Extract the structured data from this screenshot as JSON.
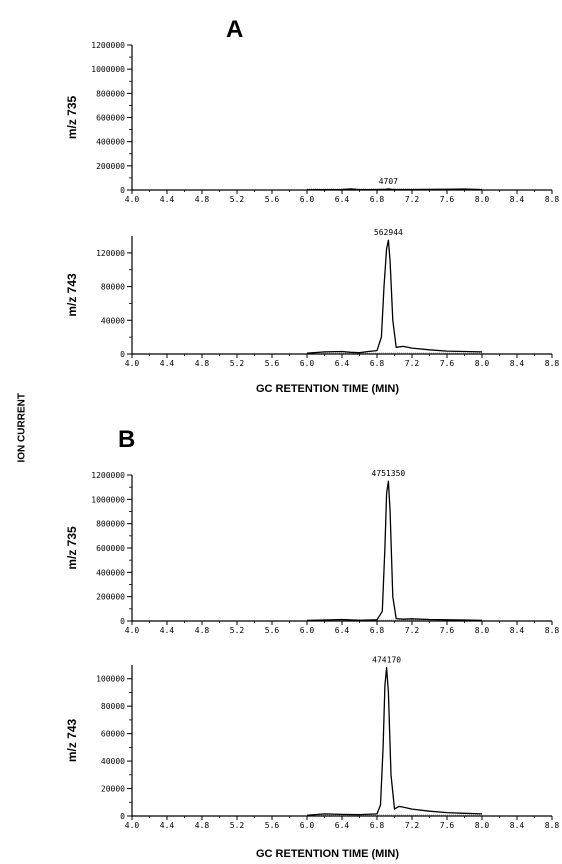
{
  "figure": {
    "panel_a_label": "A",
    "panel_b_label": "B",
    "ion_current_label": "ION CURRENT",
    "xlabel_a": "GC RETENTION TIME (MIN)",
    "xlabel_b": "GC RETENTION TIME (MIN)"
  },
  "chart_data": [
    {
      "type": "line",
      "panel": "A",
      "ylabel": "m/z  735",
      "xlim": [
        4.0,
        8.8
      ],
      "ylim": [
        0,
        1200000
      ],
      "xticks": [
        "4.0",
        "4.4",
        "4.8",
        "5.2",
        "5.6",
        "6.0",
        "6.4",
        "6.8",
        "7.2",
        "7.6",
        "8.0",
        "8.4",
        "8.8"
      ],
      "yticks": [
        "0",
        "200000",
        "400000",
        "600000",
        "800000",
        "1000000",
        "1200000"
      ],
      "annotation": "4707",
      "annotation_x": 6.93,
      "x": [
        6.0,
        6.2,
        6.4,
        6.5,
        6.6,
        6.7,
        6.8,
        6.9,
        6.93,
        6.96,
        7.0,
        7.2,
        7.4,
        7.6,
        7.8,
        8.0
      ],
      "y": [
        2000,
        3000,
        4000,
        9000,
        3000,
        3500,
        4000,
        6000,
        9000,
        6000,
        4000,
        4000,
        5000,
        6000,
        8000,
        3000
      ]
    },
    {
      "type": "line",
      "panel": "A",
      "ylabel": "m/z  743",
      "xlim": [
        4.0,
        8.8
      ],
      "ylim": [
        0,
        140000
      ],
      "xticks": [
        "4.0",
        "4.4",
        "4.8",
        "5.2",
        "5.6",
        "6.0",
        "6.4",
        "6.8",
        "7.2",
        "7.6",
        "8.0",
        "8.4",
        "8.8"
      ],
      "yticks": [
        "0",
        "40000",
        "80000",
        "120000"
      ],
      "annotation": "562944",
      "annotation_x": 6.93,
      "x": [
        6.0,
        6.2,
        6.4,
        6.5,
        6.6,
        6.7,
        6.8,
        6.85,
        6.88,
        6.91,
        6.93,
        6.95,
        6.98,
        7.02,
        7.1,
        7.2,
        7.4,
        7.6,
        7.8,
        8.0
      ],
      "y": [
        1000,
        2500,
        3000,
        2000,
        1500,
        3000,
        4000,
        20000,
        80000,
        125000,
        135000,
        110000,
        40000,
        8000,
        9000,
        7000,
        5000,
        3500,
        3000,
        2500
      ]
    },
    {
      "type": "line",
      "panel": "B",
      "ylabel": "m/z  735",
      "xlim": [
        4.0,
        8.8
      ],
      "ylim": [
        0,
        1200000
      ],
      "xticks": [
        "4.0",
        "4.4",
        "4.8",
        "5.2",
        "5.6",
        "6.0",
        "6.4",
        "6.8",
        "7.2",
        "7.6",
        "8.0",
        "8.4",
        "8.8"
      ],
      "yticks": [
        "0",
        "200000",
        "400000",
        "600000",
        "800000",
        "1000000",
        "1200000"
      ],
      "annotation": "4751350",
      "annotation_x": 6.93,
      "x": [
        6.0,
        6.2,
        6.4,
        6.6,
        6.8,
        6.86,
        6.89,
        6.91,
        6.93,
        6.95,
        6.98,
        7.02,
        7.1,
        7.2,
        7.4,
        7.6,
        7.8,
        8.0
      ],
      "y": [
        5000,
        8000,
        12000,
        6000,
        10000,
        80000,
        600000,
        1050000,
        1150000,
        900000,
        200000,
        20000,
        15000,
        18000,
        12000,
        10000,
        8000,
        5000
      ]
    },
    {
      "type": "line",
      "panel": "B",
      "ylabel": "m/z  743",
      "xlim": [
        4.0,
        8.8
      ],
      "ylim": [
        0,
        110000
      ],
      "xticks": [
        "4.0",
        "4.4",
        "4.8",
        "5.2",
        "5.6",
        "6.0",
        "6.4",
        "6.8",
        "7.2",
        "7.6",
        "8.0",
        "8.4",
        "8.8"
      ],
      "yticks": [
        "0",
        "20000",
        "40000",
        "60000",
        "80000",
        "100000"
      ],
      "annotation": "474170",
      "annotation_x": 6.91,
      "x": [
        6.0,
        6.2,
        6.4,
        6.6,
        6.8,
        6.84,
        6.87,
        6.89,
        6.91,
        6.93,
        6.96,
        7.0,
        7.05,
        7.1,
        7.2,
        7.4,
        7.6,
        7.8,
        8.0
      ],
      "y": [
        500,
        1500,
        1200,
        1000,
        1500,
        8000,
        50000,
        95000,
        108000,
        90000,
        30000,
        5000,
        7000,
        6500,
        5000,
        3500,
        2500,
        2000,
        1500
      ]
    }
  ]
}
